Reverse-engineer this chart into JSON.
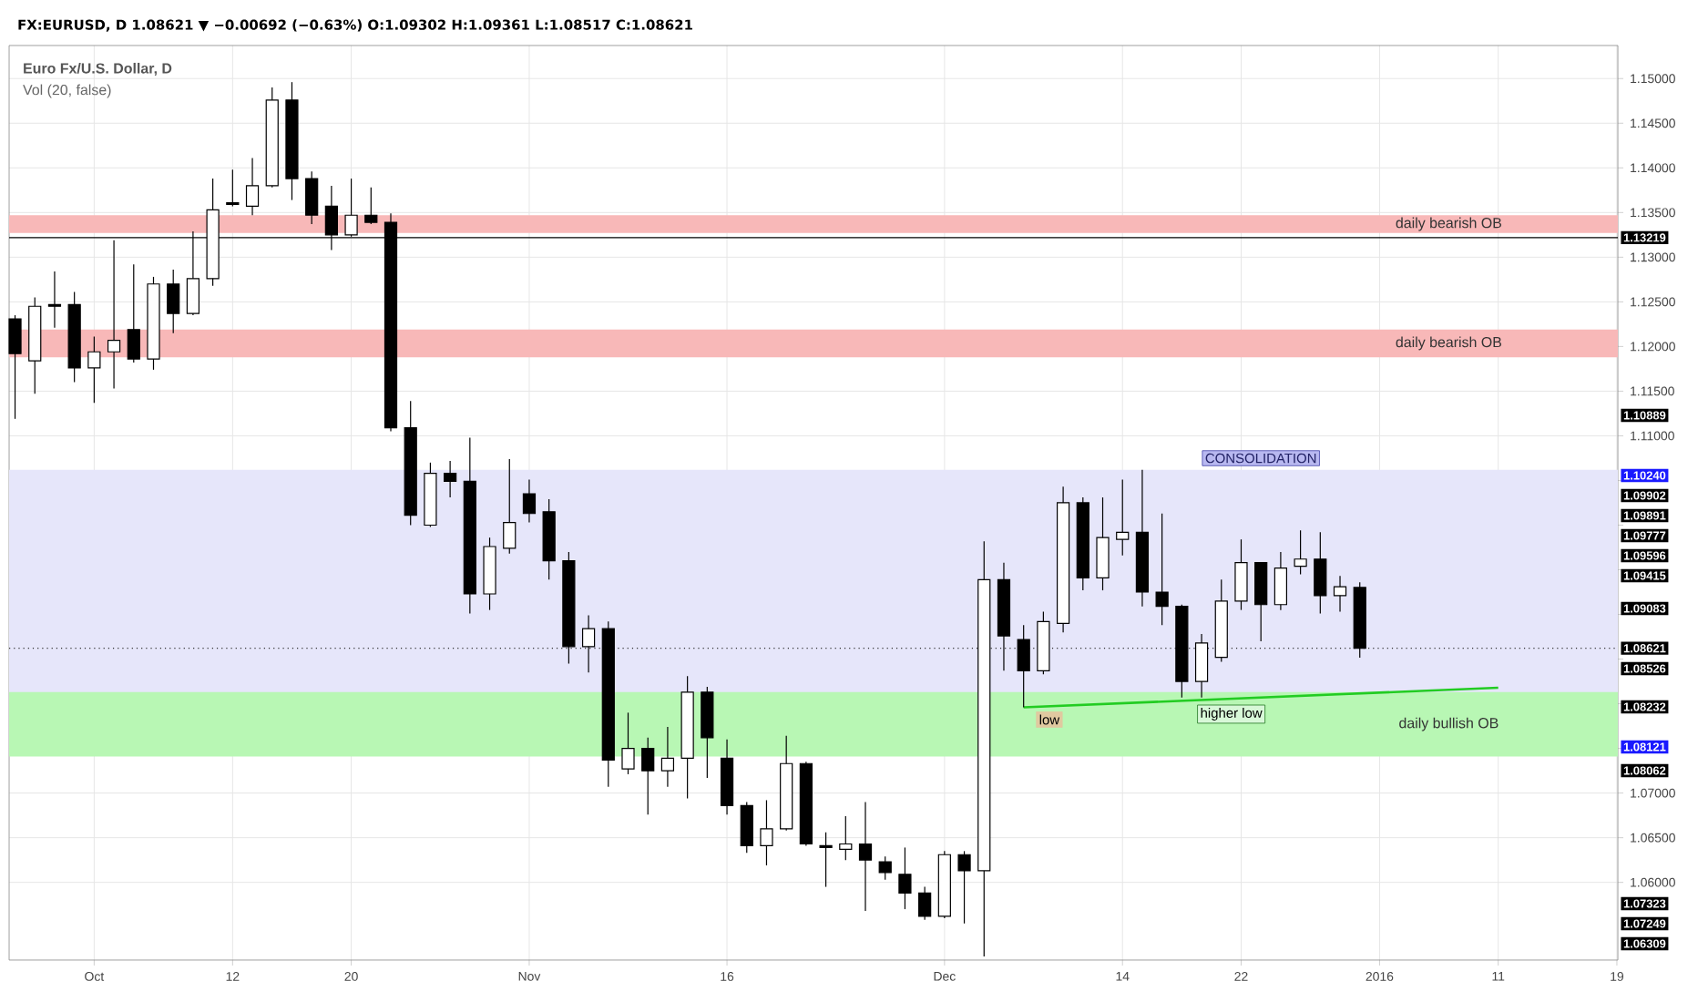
{
  "chart_data": {
    "type": "candlestick",
    "title": "FX:EURUSD, D 1.08621 ▼ −0.00692 (−0.63%) O:1.09302 H:1.09361 L:1.08517 C:1.08621",
    "subtitle": "Euro Fx/U.S. Dollar, D",
    "categories": [
      null,
      null,
      null,
      null,
      "Oct",
      null,
      null,
      null,
      null,
      null,
      null,
      "12",
      null,
      null,
      null,
      null,
      null,
      "20",
      null,
      null,
      null,
      null,
      null,
      null,
      null,
      null,
      "Nov",
      null,
      null,
      null,
      null,
      null,
      null,
      null,
      null,
      null,
      "16",
      null,
      null,
      null,
      null,
      null,
      null,
      null,
      null,
      null,
      null,
      "Dec",
      null,
      null,
      null,
      null,
      null,
      null,
      null,
      null,
      "14",
      null,
      null,
      null,
      null,
      null,
      "22",
      null,
      null,
      null,
      null,
      null,
      null,
      "2016",
      null,
      null,
      null,
      null,
      null,
      "11",
      null,
      null,
      null,
      null,
      null,
      "19"
    ],
    "ohlc": [
      [
        1.1231,
        1.1235,
        1.1119,
        1.1192
      ],
      [
        1.1184,
        1.1255,
        1.1147,
        1.1245
      ],
      [
        1.1247,
        1.1284,
        1.1221,
        1.1245
      ],
      [
        1.1247,
        1.1261,
        1.116,
        1.1176
      ],
      [
        1.1176,
        1.1211,
        1.1137,
        1.1194
      ],
      [
        1.1194,
        1.1319,
        1.1153,
        1.1207
      ],
      [
        1.1219,
        1.1292,
        1.1182,
        1.1186
      ],
      [
        1.1186,
        1.1278,
        1.1174,
        1.127
      ],
      [
        1.127,
        1.1286,
        1.1215,
        1.1237
      ],
      [
        1.1237,
        1.1329,
        1.1235,
        1.1276
      ],
      [
        1.1276,
        1.1388,
        1.1268,
        1.1353
      ],
      [
        1.1361,
        1.1398,
        1.1357,
        1.1359
      ],
      [
        1.1357,
        1.1411,
        1.1347,
        1.138
      ],
      [
        1.138,
        1.149,
        1.1378,
        1.1476
      ],
      [
        1.1476,
        1.1496,
        1.1364,
        1.1388
      ],
      [
        1.1388,
        1.1396,
        1.1337,
        1.1347
      ],
      [
        1.1357,
        1.138,
        1.1308,
        1.1325
      ],
      [
        1.1325,
        1.1388,
        1.1323,
        1.1347
      ],
      [
        1.1347,
        1.1378,
        1.1337,
        1.1339
      ],
      [
        1.1339,
        1.1349,
        1.1105,
        1.1109
      ],
      [
        1.1109,
        1.1139,
        1.1,
        1.1011
      ],
      [
        1.1,
        1.107,
        1.0998,
        1.1058
      ],
      [
        1.1058,
        1.1072,
        1.1031,
        1.1049
      ],
      [
        1.1049,
        1.1098,
        1.0901,
        1.0923
      ],
      [
        1.0923,
        1.0986,
        1.0905,
        1.0976
      ],
      [
        1.0974,
        1.1074,
        1.0968,
        1.1003
      ],
      [
        1.1035,
        1.1051,
        1.1003,
        1.1013
      ],
      [
        1.1015,
        1.1029,
        1.0939,
        1.096
      ],
      [
        1.096,
        1.097,
        1.0845,
        1.0864
      ],
      [
        1.0864,
        1.0899,
        1.0835,
        1.0884
      ],
      [
        1.0884,
        1.0892,
        1.0707,
        1.0737
      ],
      [
        1.0727,
        1.079,
        1.0721,
        1.075
      ],
      [
        1.075,
        1.0762,
        1.0676,
        1.0725
      ],
      [
        1.0725,
        1.0774,
        1.0707,
        1.0739
      ],
      [
        1.0739,
        1.0831,
        1.0694,
        1.0813
      ],
      [
        1.0813,
        1.0819,
        1.0717,
        1.0762
      ],
      [
        1.0739,
        1.076,
        1.0676,
        1.0686
      ],
      [
        1.0686,
        1.069,
        1.0633,
        1.0641
      ],
      [
        1.0641,
        1.0692,
        1.0619,
        1.066
      ],
      [
        1.066,
        1.0764,
        1.0658,
        1.0733
      ],
      [
        1.0733,
        1.0735,
        1.0641,
        1.0643
      ],
      [
        1.0641,
        1.0656,
        1.0595,
        1.0639
      ],
      [
        1.0637,
        1.0674,
        1.0625,
        1.0643
      ],
      [
        1.0643,
        1.069,
        1.0568,
        1.0625
      ],
      [
        1.0623,
        1.0629,
        1.0603,
        1.0611
      ],
      [
        1.0609,
        1.0639,
        1.057,
        1.0588
      ],
      [
        1.0588,
        1.0595,
        1.0558,
        1.0562
      ],
      [
        1.0562,
        1.0635,
        1.056,
        1.0631
      ],
      [
        1.0631,
        1.0635,
        1.0554,
        1.0613
      ],
      [
        1.0613,
        1.0982,
        1.0517,
        1.0939
      ],
      [
        1.0939,
        1.0958,
        1.0837,
        1.0876
      ],
      [
        1.0872,
        1.0888,
        1.0796,
        1.0837
      ],
      [
        1.0837,
        1.0903,
        1.0833,
        1.0892
      ],
      [
        1.089,
        1.1043,
        1.088,
        1.1025
      ],
      [
        1.1025,
        1.1031,
        1.0927,
        1.0941
      ],
      [
        1.0941,
        1.1031,
        1.0927,
        1.0986
      ],
      [
        1.0984,
        1.1051,
        1.0966,
        1.0992
      ],
      [
        1.0992,
        1.1062,
        1.0909,
        1.0925
      ],
      [
        1.0925,
        1.1013,
        1.0888,
        1.0909
      ],
      [
        1.0909,
        1.0911,
        1.0807,
        1.0825
      ],
      [
        1.0825,
        1.0878,
        1.0807,
        1.0868
      ],
      [
        1.0852,
        1.0939,
        1.0847,
        1.0915
      ],
      [
        1.0915,
        1.0984,
        1.0905,
        1.0958
      ],
      [
        1.0958,
        1.0958,
        1.087,
        1.0911
      ],
      [
        1.0911,
        1.097,
        1.0905,
        1.0952
      ],
      [
        1.0954,
        1.0994,
        1.0945,
        1.0962
      ],
      [
        1.0962,
        1.0992,
        1.0901,
        1.0921
      ],
      [
        1.0921,
        1.0943,
        1.0903,
        1.0931
      ],
      [
        1.09302,
        1.09361,
        1.08517,
        1.08621
      ],
      null,
      null,
      null,
      null,
      null,
      null,
      null,
      null,
      null,
      null,
      null,
      null,
      null
    ],
    "series": [
      {
        "type": "line",
        "color": "#22cc22",
        "values": [
          null,
          null,
          null,
          null,
          null,
          null,
          null,
          null,
          null,
          null,
          null,
          null,
          null,
          null,
          null,
          null,
          null,
          null,
          null,
          null,
          null,
          null,
          null,
          null,
          null,
          null,
          null,
          null,
          null,
          null,
          null,
          null,
          null,
          null,
          null,
          null,
          null,
          null,
          null,
          null,
          null,
          null,
          null,
          null,
          null,
          null,
          null,
          null,
          null,
          null,
          null,
          1.0796,
          null,
          null,
          null,
          null,
          null,
          null,
          null,
          null,
          null,
          null,
          null,
          null,
          null,
          null,
          null,
          null,
          null,
          null,
          null,
          null,
          null,
          null,
          null,
          1.0818,
          null,
          null,
          null,
          null,
          null,
          null
        ]
      }
    ],
    "ylim": [
      1.0513,
      1.1537
    ],
    "yticks": [
      {
        "value": 1.06,
        "label": "1.06000"
      },
      {
        "value": 1.065,
        "label": "1.06500"
      },
      {
        "value": 1.07,
        "label": "1.07000"
      },
      {
        "value": 1.075,
        "label": null
      },
      {
        "value": 1.08,
        "label": null
      },
      {
        "value": 1.085,
        "label": null
      },
      {
        "value": 1.09,
        "label": null
      },
      {
        "value": 1.095,
        "label": null
      },
      {
        "value": 1.1,
        "label": null
      },
      {
        "value": 1.105,
        "label": null
      },
      {
        "value": 1.11,
        "label": "1.11000"
      },
      {
        "value": 1.115,
        "label": "1.11500"
      },
      {
        "value": 1.12,
        "label": "1.12000"
      },
      {
        "value": 1.125,
        "label": "1.12500"
      },
      {
        "value": 1.13,
        "label": "1.13000"
      },
      {
        "value": 1.135,
        "label": "1.13500"
      },
      {
        "value": 1.14,
        "label": "1.14000"
      },
      {
        "value": 1.145,
        "label": "1.14500"
      },
      {
        "value": 1.15,
        "label": "1.15000"
      }
    ],
    "grid": true,
    "bands": [
      {
        "axis": "y",
        "from": 1.1327,
        "to": 1.1347,
        "label": "daily bearish OB",
        "color": "#f8b8b8"
      },
      {
        "axis": "y",
        "from": 1.1188,
        "to": 1.1219,
        "label": "daily bearish OB",
        "color": "#f8b8b8"
      },
      {
        "axis": "y",
        "from": 1.0807,
        "to": 1.1062,
        "label": "CONSOLIDATION",
        "color": "#e6e6fa"
      },
      {
        "axis": "y",
        "from": 1.0741,
        "to": 1.0813,
        "label": "daily bullish OB",
        "color": "#b8f7b4"
      }
    ],
    "ref_lines": [
      {
        "axis": "y",
        "value": 1.13219,
        "label": "1.13219",
        "color": "#000000",
        "line_style": "solid"
      },
      {
        "axis": "y",
        "value": 1.08621,
        "label": "1.08621",
        "color": "#333333",
        "line_style": "dotted"
      }
    ],
    "annotations": [
      "Vol (20, false)",
      "low",
      "higher low",
      "1.10889",
      "1.10240",
      "1.09902",
      "1.09891",
      "1.09777",
      "1.09596",
      "1.09415",
      "1.09083",
      "1.08526",
      "1.08232",
      "1.08121",
      "1.08062",
      "1.07323",
      "1.07249",
      "1.06309"
    ]
  }
}
